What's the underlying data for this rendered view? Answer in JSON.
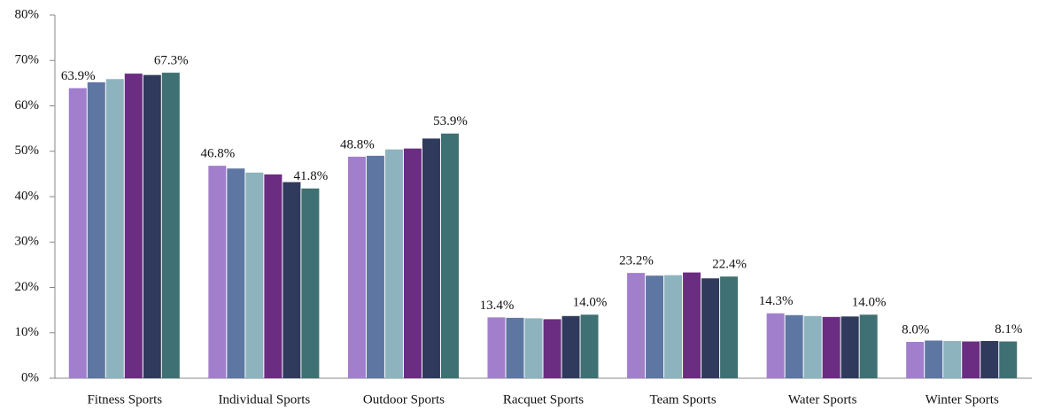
{
  "chart_data": {
    "type": "bar",
    "categories": [
      "Fitness Sports",
      "Individual Sports",
      "Outdoor Sports",
      "Racquet Sports",
      "Team Sports",
      "Water Sports",
      "Winter Sports"
    ],
    "series": [
      {
        "color": "#a27fcc",
        "values": [
          63.9,
          46.8,
          48.8,
          13.4,
          23.2,
          14.3,
          8.0
        ],
        "value_labels": [
          "63.9%",
          "46.8%",
          "48.8%",
          "13.4%",
          "23.2%",
          "14.3%",
          "8.0%"
        ]
      },
      {
        "color": "#5e77a2",
        "values": [
          65.2,
          46.2,
          49.0,
          13.3,
          22.6,
          13.9,
          8.3
        ]
      },
      {
        "color": "#8db3bf",
        "values": [
          65.9,
          45.3,
          50.4,
          13.2,
          22.7,
          13.7,
          8.2
        ]
      },
      {
        "color": "#6b2d82",
        "values": [
          67.1,
          44.9,
          50.6,
          13.0,
          23.3,
          13.5,
          8.1
        ]
      },
      {
        "color": "#2f3a5c",
        "values": [
          66.8,
          43.2,
          52.8,
          13.7,
          22.0,
          13.6,
          8.2
        ]
      },
      {
        "color": "#3f7073",
        "values": [
          67.3,
          41.8,
          53.9,
          14.0,
          22.4,
          14.0,
          8.1
        ],
        "value_labels": [
          "67.3%",
          "41.8%",
          "53.9%",
          "14.0%",
          "22.4%",
          "14.0%",
          "8.1%"
        ]
      }
    ],
    "ylim": [
      0,
      80
    ],
    "yticks": [
      {
        "value": 0,
        "label": "0%"
      },
      {
        "value": 10,
        "label": "10%"
      },
      {
        "value": 20,
        "label": "20%"
      },
      {
        "value": 30,
        "label": "30%"
      },
      {
        "value": 40,
        "label": "40%"
      },
      {
        "value": 50,
        "label": "50%"
      },
      {
        "value": 60,
        "label": "60%"
      },
      {
        "value": 70,
        "label": "70%"
      },
      {
        "value": 80,
        "label": "80%"
      }
    ]
  }
}
